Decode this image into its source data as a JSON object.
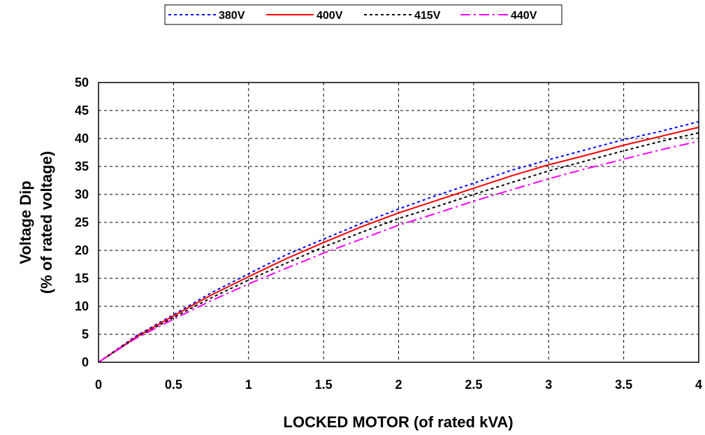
{
  "chart_data": {
    "type": "line",
    "title": "",
    "xlabel": "LOCKED MOTOR (of rated kVA)",
    "ylabel_line1": "Voltage Dip",
    "ylabel_line2": "(% of rated voltage)",
    "xlim": [
      0,
      4
    ],
    "ylim": [
      0,
      50
    ],
    "x_ticks": [
      "0",
      "0.5",
      "1",
      "1.5",
      "2",
      "2.5",
      "3",
      "3.5",
      "4"
    ],
    "y_ticks": [
      "0",
      "5",
      "10",
      "15",
      "20",
      "25",
      "30",
      "35",
      "40",
      "45",
      "50"
    ],
    "grid": true,
    "legend_position": "top-center",
    "x": [
      0,
      0.25,
      0.5,
      0.75,
      1,
      1.25,
      1.5,
      1.75,
      2,
      2.25,
      2.5,
      2.75,
      3,
      3.25,
      3.5,
      3.75,
      4
    ],
    "series": [
      {
        "name": "380V",
        "color": "#0000ff",
        "dash": "dotted",
        "values": [
          0,
          4.7,
          8.5,
          12.4,
          15.8,
          19.2,
          22.0,
          24.8,
          27.4,
          29.8,
          32.0,
          34.3,
          36.2,
          38.0,
          39.8,
          41.3,
          43.0
        ]
      },
      {
        "name": "400V",
        "color": "#ff0000",
        "dash": "solid",
        "values": [
          0,
          4.5,
          8.3,
          12.0,
          15.3,
          18.5,
          21.4,
          24.2,
          26.7,
          28.9,
          31.1,
          33.3,
          35.3,
          37.0,
          38.8,
          40.4,
          42.0
        ]
      },
      {
        "name": "415V",
        "color": "#000000",
        "dash": "dashed-short",
        "values": [
          0,
          4.4,
          8.0,
          11.5,
          14.7,
          17.7,
          20.6,
          23.2,
          25.7,
          27.8,
          30.0,
          32.1,
          34.2,
          36.0,
          37.8,
          39.5,
          41.0
        ]
      },
      {
        "name": "440V",
        "color": "#ff00ff",
        "dash": "dash-dot",
        "values": [
          0,
          4.3,
          7.7,
          11.0,
          14.0,
          16.8,
          19.5,
          22.0,
          24.5,
          26.6,
          28.8,
          30.8,
          32.8,
          34.6,
          36.3,
          38.0,
          39.5
        ]
      }
    ]
  }
}
